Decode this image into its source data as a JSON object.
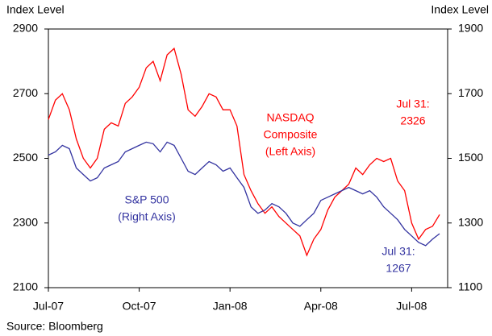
{
  "chart_data": {
    "type": "line",
    "y_label": "Index Level",
    "y2_label": "Index Level",
    "source": "Source: Bloomberg",
    "categories": [
      "Jul-07",
      null,
      null,
      null,
      null,
      null,
      null,
      null,
      null,
      null,
      null,
      null,
      null,
      "Oct-07",
      null,
      null,
      null,
      null,
      null,
      null,
      null,
      null,
      null,
      null,
      null,
      null,
      "Jan-08",
      null,
      null,
      null,
      null,
      null,
      null,
      null,
      null,
      null,
      null,
      null,
      null,
      "Apr-08",
      null,
      null,
      null,
      null,
      null,
      null,
      null,
      null,
      null,
      null,
      null,
      null,
      "Jul-08",
      null,
      null,
      null,
      null
    ],
    "ylim": [
      2100,
      2900
    ],
    "yticks": [
      2100,
      2300,
      2500,
      2700,
      2900
    ],
    "y2lim": [
      1100,
      1900
    ],
    "y2ticks": [
      1100,
      1300,
      1500,
      1700,
      1900
    ],
    "series": [
      {
        "color": "#ff0000",
        "label": [
          "NASDAQ",
          "Composite",
          "(Left Axis)"
        ],
        "end_label": [
          "Jul 31:",
          "2326"
        ],
        "values": [
          2620,
          2680,
          2700,
          2650,
          2560,
          2500,
          2470,
          2500,
          2590,
          2610,
          2600,
          2670,
          2690,
          2720,
          2780,
          2800,
          2740,
          2820,
          2840,
          2760,
          2650,
          2630,
          2660,
          2700,
          2690,
          2650,
          2650,
          2600,
          2450,
          2400,
          2360,
          2330,
          2350,
          2320,
          2300,
          2280,
          2260,
          2200,
          2250,
          2280,
          2340,
          2380,
          2400,
          2420,
          2470,
          2450,
          2480,
          2500,
          2490,
          2500,
          2430,
          2400,
          2300,
          2250,
          2280,
          2290,
          2326
        ]
      },
      {
        "color": "#3333a0",
        "axis": "y2",
        "label": [
          "S&P 500",
          "(Right Axis)"
        ],
        "end_label": [
          "Jul 31:",
          "1267"
        ],
        "values": [
          1510,
          1520,
          1540,
          1530,
          1470,
          1450,
          1430,
          1440,
          1470,
          1480,
          1490,
          1520,
          1530,
          1540,
          1550,
          1545,
          1520,
          1550,
          1540,
          1500,
          1460,
          1450,
          1470,
          1490,
          1480,
          1460,
          1470,
          1440,
          1410,
          1350,
          1330,
          1340,
          1360,
          1350,
          1330,
          1300,
          1290,
          1310,
          1330,
          1370,
          1380,
          1390,
          1400,
          1410,
          1400,
          1390,
          1400,
          1380,
          1350,
          1330,
          1310,
          1280,
          1260,
          1240,
          1230,
          1250,
          1267
        ]
      }
    ]
  }
}
